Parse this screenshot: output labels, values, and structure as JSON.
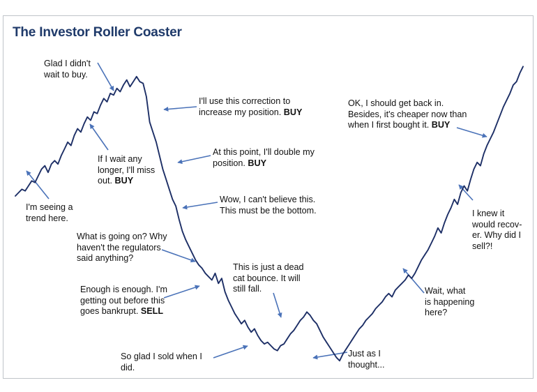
{
  "title": "The Investor Roller Coaster",
  "colors": {
    "line": "#1d2f66",
    "arrow": "#4a72b8",
    "title": "#1f3a6a",
    "frame": "#bfc4c9"
  },
  "chart_data": {
    "type": "line",
    "title": "The Investor Roller Coaster",
    "xlabel": "",
    "ylabel": "",
    "axes_visible": false,
    "grid": false,
    "series": [
      {
        "values": [
          52,
          54,
          56,
          55,
          58,
          61,
          60,
          64,
          68,
          70,
          66,
          71,
          73,
          71,
          76,
          80,
          84,
          82,
          88,
          92,
          90,
          95,
          99,
          97,
          102,
          101,
          106,
          110,
          108,
          113,
          112,
          116,
          114,
          118,
          121,
          117,
          120,
          123,
          120,
          119,
          111,
          96,
          90,
          84,
          76,
          68,
          62,
          56,
          50,
          46,
          38,
          31,
          26,
          22,
          18,
          14,
          11,
          9,
          6,
          4,
          2,
          6,
          0,
          3,
          -5,
          -10,
          -14,
          -18,
          -21,
          -24,
          -22,
          -26,
          -29,
          -27,
          -31,
          -34,
          -36,
          -35,
          -37,
          -39,
          -40,
          -37,
          -36,
          -33,
          -30,
          -28,
          -25,
          -22,
          -20,
          -17,
          -19,
          -22,
          -24,
          -28,
          -32,
          -35,
          -38,
          -41,
          -44,
          -46,
          -42,
          -39,
          -36,
          -33,
          -30,
          -27,
          -25,
          -22,
          -20,
          -18,
          -15,
          -13,
          -11,
          -8,
          -6,
          -8,
          -4,
          -2,
          0,
          2,
          5,
          3,
          6,
          10,
          14,
          17,
          20,
          24,
          28,
          33,
          30,
          36,
          41,
          45,
          50,
          47,
          54,
          58,
          55,
          62,
          68,
          72,
          70,
          77,
          82,
          86,
          90,
          95,
          100,
          105,
          109,
          113,
          118,
          120,
          125,
          129
        ]
      }
    ],
    "annotations": [
      {
        "lines": [
          "I'm seeing a",
          "trend here."
        ]
      },
      {
        "lines": [
          "Glad I didn't",
          "wait to buy."
        ]
      },
      {
        "lines": [
          "If I wait any",
          "longer, I'll miss",
          "out."
        ],
        "action": "BUY"
      },
      {
        "lines": [
          "I'll use this correction to",
          "increase my position."
        ],
        "action": "BUY"
      },
      {
        "lines": [
          "At this point, I'll double my",
          "position."
        ],
        "action": "BUY"
      },
      {
        "lines": [
          "Wow, I can't believe this.",
          "This must be the bottom."
        ]
      },
      {
        "lines": [
          "What is going on? Why",
          "haven't the regulators",
          "said anything?"
        ]
      },
      {
        "lines": [
          "Enough is enough. I'm",
          "getting out before this",
          "goes bankrupt."
        ],
        "action": "SELL"
      },
      {
        "lines": [
          "So glad I sold when I",
          "did."
        ]
      },
      {
        "lines": [
          "This is just a dead",
          "cat bounce. It will",
          "still fall."
        ]
      },
      {
        "lines": [
          "Just as I",
          "thought..."
        ]
      },
      {
        "lines": [
          "Wait, what",
          "is happening",
          "here?"
        ]
      },
      {
        "lines": [
          "I knew it",
          "would recov-",
          "er. Why did I",
          "sell?!"
        ]
      },
      {
        "lines": [
          "OK, I should get back in.",
          "Besides, it's cheaper now than",
          "when I first bought it."
        ],
        "action": "BUY"
      }
    ]
  }
}
